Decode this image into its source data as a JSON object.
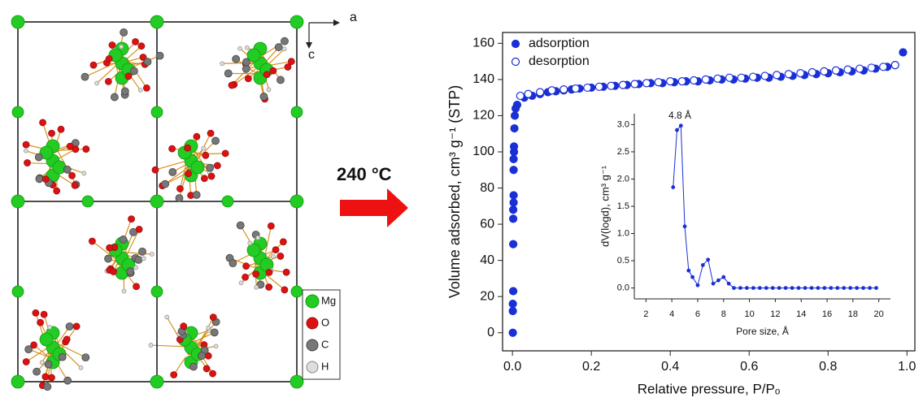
{
  "structure": {
    "axis_a": "a",
    "axis_c": "c",
    "legend": [
      "Mg",
      "O",
      "C",
      "H"
    ],
    "condition": "240 °C"
  },
  "chart_data": [
    {
      "type": "scatter",
      "x_label": "Relative pressure, P/Pₒ",
      "y_label": "Volume adsorbed, cm³ g⁻¹ (STP)",
      "xlim": [
        -0.025,
        1.02
      ],
      "ylim": [
        -10,
        166
      ],
      "xticks": [
        {
          "value": 0,
          "label": "0.0"
        },
        0.2,
        0.4,
        0.6,
        0.8,
        {
          "value": 1,
          "label": "1.0"
        }
      ],
      "yticks": [
        0,
        20,
        40,
        60,
        80,
        100,
        120,
        140,
        160
      ],
      "legend": "upper left",
      "series": [
        {
          "name": "adsorption",
          "color": "#1a2fd6",
          "filled": true,
          "x": [
            0.001,
            0.001,
            0.001,
            0.002,
            0.002,
            0.002,
            0.002,
            0.003,
            0.003,
            0.003,
            0.003,
            0.004,
            0.004,
            0.005,
            0.006,
            0.008,
            0.012,
            0.03,
            0.05,
            0.07,
            0.09,
            0.11,
            0.13,
            0.15,
            0.17,
            0.2,
            0.23,
            0.26,
            0.29,
            0.32,
            0.35,
            0.38,
            0.41,
            0.44,
            0.47,
            0.5,
            0.53,
            0.56,
            0.59,
            0.62,
            0.65,
            0.68,
            0.71,
            0.74,
            0.77,
            0.8,
            0.83,
            0.86,
            0.89,
            0.92,
            0.95,
            0.97,
            0.99
          ],
          "values": [
            0,
            12,
            16,
            23,
            49,
            63,
            68,
            72,
            76,
            90,
            96,
            100,
            103,
            113,
            120,
            124,
            126,
            130,
            131,
            132,
            133,
            133.5,
            134,
            134.5,
            135,
            135.5,
            136,
            136.5,
            137,
            137.5,
            138,
            138,
            138.5,
            139,
            139,
            139.5,
            140,
            140,
            140.5,
            141,
            141,
            141.5,
            142,
            142.5,
            143,
            143.5,
            144,
            144.5,
            145,
            146,
            147,
            148,
            155
          ]
        },
        {
          "name": "desorption",
          "color": "#1a2fd6",
          "filled": false,
          "x": [
            0.02,
            0.04,
            0.07,
            0.1,
            0.13,
            0.16,
            0.19,
            0.22,
            0.25,
            0.28,
            0.31,
            0.34,
            0.37,
            0.4,
            0.43,
            0.46,
            0.49,
            0.52,
            0.55,
            0.58,
            0.61,
            0.64,
            0.67,
            0.7,
            0.73,
            0.76,
            0.79,
            0.82,
            0.85,
            0.88,
            0.91,
            0.94,
            0.97
          ],
          "values": [
            131,
            132,
            133,
            134,
            134.5,
            135,
            135.5,
            136,
            136.5,
            137,
            137.5,
            138,
            138.5,
            139,
            139,
            139.5,
            140,
            140.5,
            141,
            141,
            141.5,
            142,
            142.5,
            143,
            143.5,
            144,
            144.5,
            145,
            145.5,
            146,
            146.5,
            147,
            148
          ]
        }
      ]
    },
    {
      "type": "line",
      "x_label": "Pore size, Å",
      "y_label": "dV(logd), cm³ g⁻¹",
      "annotation": "4.8 Å",
      "xlim": [
        1.1,
        20.9
      ],
      "ylim": [
        -0.2,
        3.2
      ],
      "xticks": [
        2,
        4,
        6,
        8,
        10,
        12,
        14,
        16,
        18,
        20
      ],
      "yticks": [
        {
          "value": 0,
          "label": "0.0"
        },
        0.5,
        {
          "value": 1,
          "label": "1.0"
        },
        1.5,
        {
          "value": 2,
          "label": "2.0"
        },
        2.5,
        {
          "value": 3,
          "label": "3.0"
        }
      ],
      "series": [
        {
          "color": "#1a2fd6",
          "x": [
            4.1,
            4.4,
            4.7,
            5.0,
            5.3,
            5.6,
            6.0,
            6.4,
            6.8,
            7.2,
            7.6,
            8.0,
            8.4,
            8.8,
            9.3,
            9.8,
            10.3,
            10.8,
            11.3,
            11.8,
            12.3,
            12.8,
            13.3,
            13.8,
            14.3,
            14.8,
            15.3,
            15.8,
            16.3,
            16.8,
            17.3,
            17.8,
            18.3,
            18.8,
            19.3,
            19.8
          ],
          "values": [
            1.85,
            2.9,
            2.98,
            1.13,
            0.32,
            0.2,
            0.05,
            0.42,
            0.52,
            0.08,
            0.14,
            0.2,
            0.08,
            0,
            0,
            0,
            0,
            0,
            0,
            0,
            0,
            0,
            0,
            0,
            0,
            0,
            0,
            0,
            0,
            0,
            0,
            0,
            0,
            0,
            0,
            0
          ]
        }
      ]
    }
  ]
}
